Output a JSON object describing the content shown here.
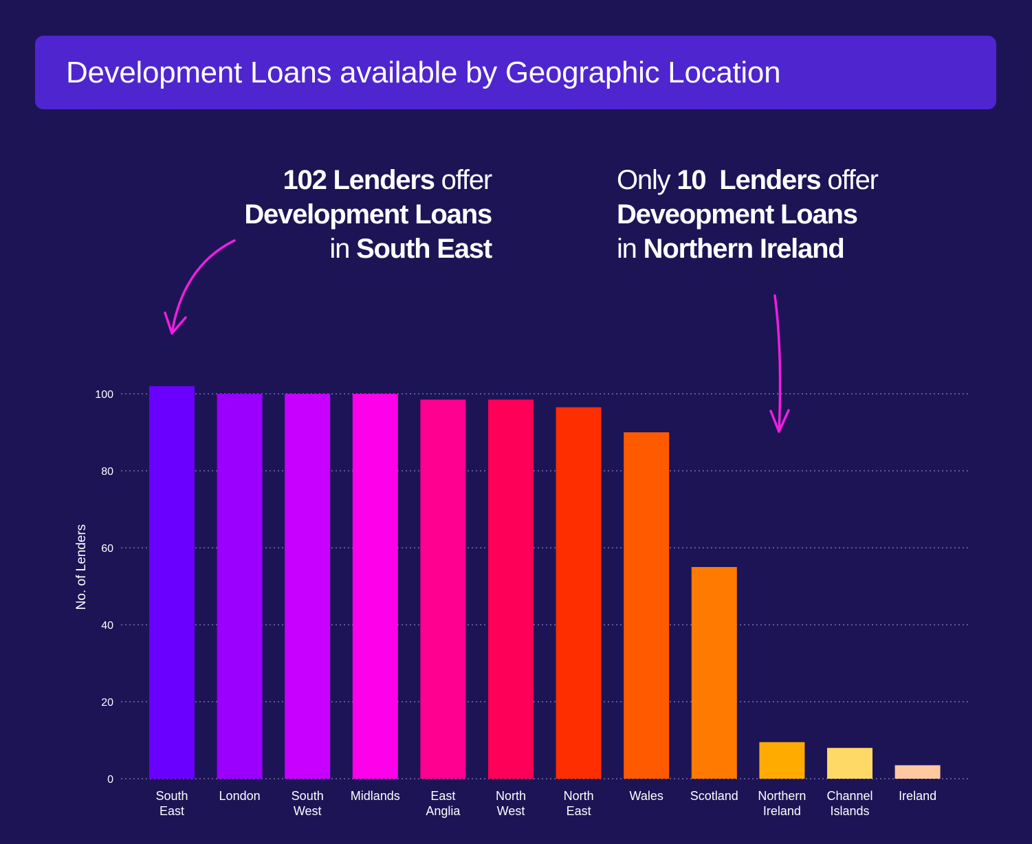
{
  "title": "Development Loans available by Geographic Location",
  "annotations": {
    "left": {
      "line1": [
        "102 Lenders",
        " offer"
      ],
      "line2": [
        "Development Loans"
      ],
      "line3": [
        "in ",
        "South East"
      ]
    },
    "right": {
      "line1": [
        "Only ",
        "10  Lenders",
        " offer"
      ],
      "line2": [
        "Deveopment Loans"
      ],
      "line3": [
        "in ",
        "Northern Ireland"
      ]
    },
    "arrow_color": "#f01ee0"
  },
  "chart_data": {
    "type": "bar",
    "ylabel": "No. of Lenders",
    "ylim": [
      0,
      100
    ],
    "yticks": [
      0,
      20,
      40,
      60,
      80,
      100
    ],
    "grid": true,
    "categories": [
      [
        "South",
        "East"
      ],
      [
        "London"
      ],
      [
        "South",
        "West"
      ],
      [
        "Midlands"
      ],
      [
        "East",
        "Anglia"
      ],
      [
        "North",
        "West"
      ],
      [
        "North",
        "East"
      ],
      [
        "Wales"
      ],
      [
        "Scotland"
      ],
      [
        "Northern",
        "Ireland"
      ],
      [
        "Channel",
        "Islands"
      ],
      [
        "Ireland"
      ]
    ],
    "values": [
      102,
      100,
      100,
      100,
      98.5,
      98.5,
      96.5,
      90,
      55,
      9.5,
      8,
      3.5
    ],
    "colors": [
      "#6a00ff",
      "#9b00ff",
      "#c800ff",
      "#ff00ea",
      "#ff0090",
      "#ff0058",
      "#ff2e00",
      "#ff5a00",
      "#ff7a00",
      "#ffab00",
      "#ffd966",
      "#ffc9a0"
    ]
  }
}
